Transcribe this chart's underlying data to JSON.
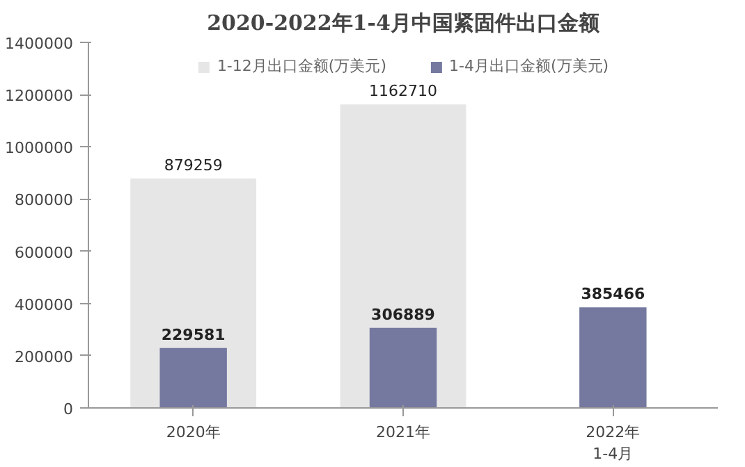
{
  "chart_data": {
    "type": "bar",
    "title": "2020-2022年1-4月中国紧固件出口金额",
    "categories": [
      "2020年",
      "2021年",
      "2022年\n1-4月"
    ],
    "series": [
      {
        "name": "1-12月出口金额(万美元)",
        "color": "#e6e6e6",
        "values": [
          879259,
          1162710,
          null
        ]
      },
      {
        "name": "1-4月出口金额(万美元)",
        "color": "#7579a0",
        "values": [
          229581,
          306889,
          385466
        ]
      }
    ],
    "ylim": [
      0,
      1400000
    ],
    "yticks": [
      0,
      200000,
      400000,
      600000,
      800000,
      1000000,
      1200000,
      1400000
    ],
    "grid": false,
    "legend": "top",
    "data_labels": true
  }
}
